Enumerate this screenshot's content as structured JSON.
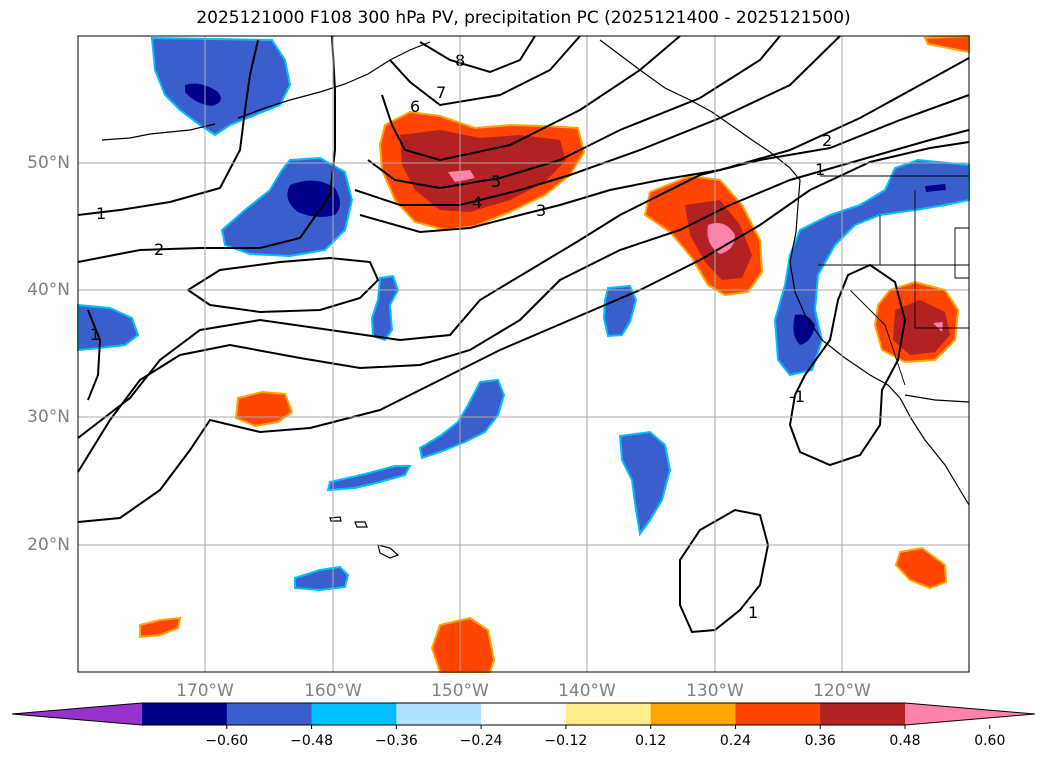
{
  "title": "2025121000 F108 300 hPa PV, precipitation PC (2025121400 - 2025121500)",
  "map": {
    "projection": "PlateCarree",
    "lon_range": [
      -180,
      -110
    ],
    "lat_range": [
      10,
      60
    ],
    "gridlines": true,
    "lat_labels": [
      "20°N",
      "30°N",
      "40°N",
      "50°N"
    ],
    "lon_labels": [
      "170°W",
      "160°W",
      "150°W",
      "140°W",
      "130°W",
      "120°W"
    ],
    "contour_labels": [
      "1",
      "2",
      "3",
      "4",
      "5",
      "6",
      "7",
      "8",
      "1",
      "2",
      "1",
      "1",
      "-1"
    ]
  },
  "colorbar": {
    "extend": "both",
    "colors": [
      "#9932cc",
      "#00008b",
      "#3a5fcd",
      "#00bfff",
      "#b0e2ff",
      "#ffffff",
      "#ffec8b",
      "#ffa500",
      "#ff4500",
      "#b22222",
      "#ff82ab"
    ],
    "tick_labels": [
      "−0.60",
      "−0.48",
      "−0.36",
      "−0.24",
      "−0.12",
      "0.12",
      "0.24",
      "0.36",
      "0.48",
      "0.60"
    ]
  }
}
